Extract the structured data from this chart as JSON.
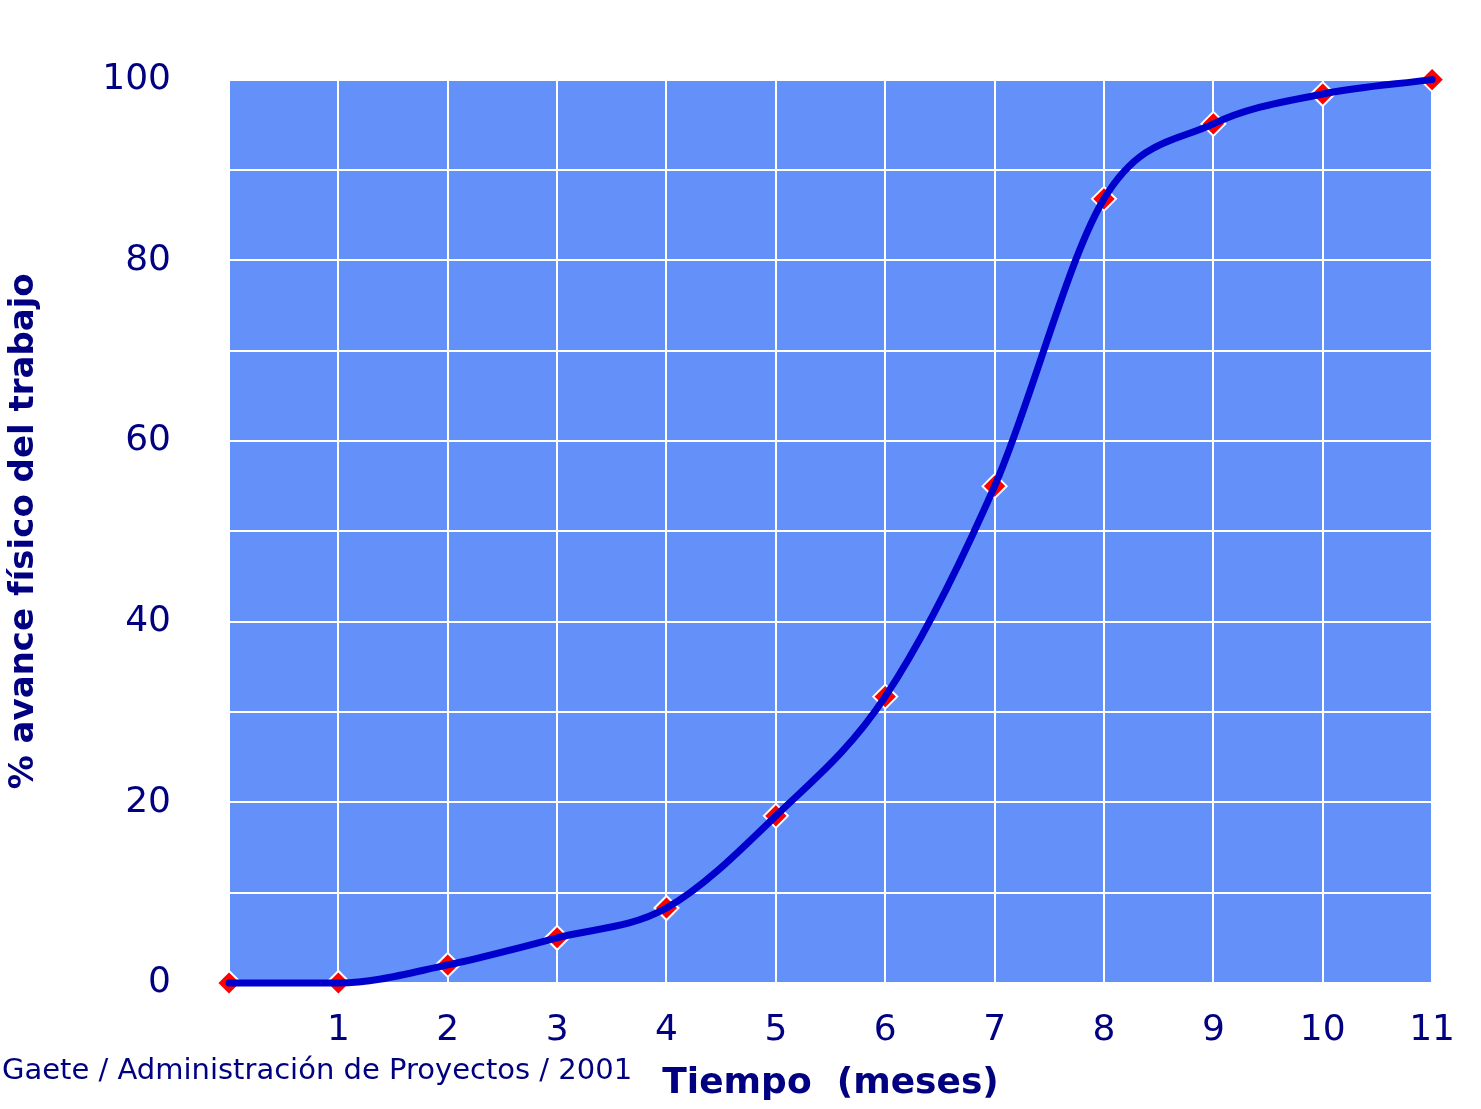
{
  "chart_data": {
    "type": "line",
    "xlabel": "Tiempo  (meses)",
    "ylabel": "% avance físico del trabajo",
    "annotations": [
      "Gaete / Administración de Proyectos / 2001"
    ],
    "x": [
      0,
      1,
      2,
      3,
      4,
      5,
      6,
      7,
      8,
      9,
      10,
      11
    ],
    "series": [
      {
        "color": "#0000cc",
        "marker": "none",
        "values": [
          0,
          0,
          2,
          5,
          8.3,
          18.5,
          31.7,
          55,
          86.8,
          95.1,
          98.4,
          100
        ]
      },
      {
        "type": "scatter",
        "color": "#ff0000",
        "marker": "diamond",
        "values": [
          0,
          0,
          2,
          5,
          8.3,
          18.5,
          31.7,
          55,
          86.8,
          95.1,
          98.4,
          100
        ]
      }
    ],
    "xlim": [
      0,
      11
    ],
    "xticks": [
      {
        "value": 0,
        "label": null
      },
      1,
      2,
      3,
      4,
      5,
      6,
      7,
      8,
      9,
      10,
      11
    ],
    "ylim": [
      0,
      100
    ],
    "yticks": [
      0,
      {
        "value": 10,
        "label": null
      },
      20,
      {
        "value": 30,
        "label": null
      },
      40,
      {
        "value": 50,
        "label": null
      },
      60,
      {
        "value": 70,
        "label": null
      },
      80,
      {
        "value": 90,
        "label": null
      },
      100
    ],
    "grid": true,
    "legend": false
  }
}
